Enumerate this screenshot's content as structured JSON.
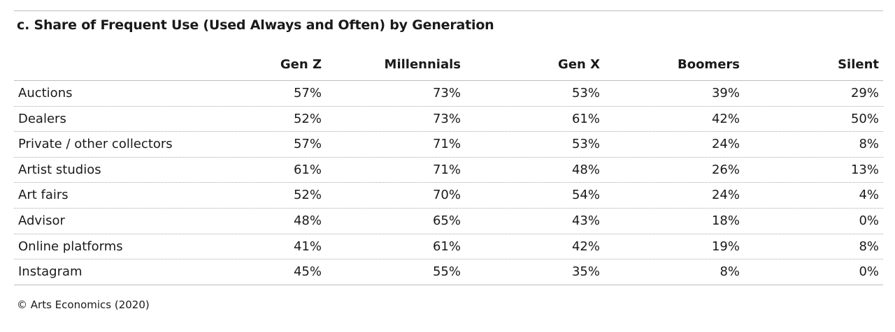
{
  "chart_data": {
    "type": "table",
    "title": "c. Share of Frequent Use (Used Always and Often) by Generation",
    "columns": [
      "Gen Z",
      "Millennials",
      "Gen X",
      "Boomers",
      "Silent"
    ],
    "rows": [
      {
        "label": "Auctions",
        "values": [
          "57%",
          "73%",
          "53%",
          "39%",
          "29%"
        ]
      },
      {
        "label": "Dealers",
        "values": [
          "52%",
          "73%",
          "61%",
          "42%",
          "50%"
        ]
      },
      {
        "label": "Private / other collectors",
        "values": [
          "57%",
          "71%",
          "53%",
          "24%",
          "8%"
        ]
      },
      {
        "label": "Artist studios",
        "values": [
          "61%",
          "71%",
          "48%",
          "26%",
          "13%"
        ]
      },
      {
        "label": "Art fairs",
        "values": [
          "52%",
          "70%",
          "54%",
          "24%",
          "4%"
        ]
      },
      {
        "label": "Advisor",
        "values": [
          "48%",
          "65%",
          "43%",
          "18%",
          "0%"
        ]
      },
      {
        "label": "Online platforms",
        "values": [
          "41%",
          "61%",
          "42%",
          "19%",
          "8%"
        ]
      },
      {
        "label": "Instagram",
        "values": [
          "45%",
          "55%",
          "35%",
          "8%",
          "0%"
        ]
      }
    ],
    "source": "© Arts Economics (2020)"
  },
  "colors": {
    "text": "#1a1a1a",
    "rule": "#bdbdbd",
    "dotted_rule": "#a8a8a8",
    "background": "#ffffff"
  }
}
